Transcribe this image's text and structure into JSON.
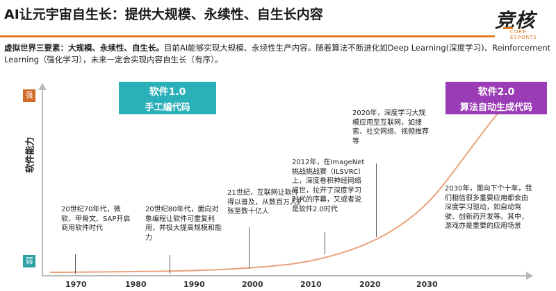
{
  "title": "AI让元宇宙自生长：提供大规模、永续性、自生长内容",
  "logo": {
    "main": "竞核",
    "sub": "CORE ESPORTS"
  },
  "description": {
    "lead": "虚拟世界三要素：大规模、永续性、自生长。",
    "body": "目前AI能够实现大规模、永续性生产内容。随着算法不断进化如Deep Learning(深度学习)、Reinforcement Learning（强化学习），未来一定会实现内容自生长（有序）。"
  },
  "y_axis": {
    "label": "软件能力",
    "top": "强",
    "bottom": "弱"
  },
  "x_ticks": [
    "1970",
    "1980",
    "1990",
    "2000",
    "2010",
    "2020",
    "2030"
  ],
  "software1": {
    "title": "软件1.0",
    "subtitle": "手工编代码"
  },
  "software2": {
    "title": "软件2.0",
    "subtitle": "算法自动生成代码"
  },
  "notes": [
    {
      "text": "20世纪70年代，微软、甲骨文、SAP开启商用软件时代"
    },
    {
      "text": "20世纪80年代，面向对象编程让软件可重复利用，并极大提高规模和能力"
    },
    {
      "text": "21世纪，互联网让软件得以普及，从数百万人扩张至数十亿人"
    },
    {
      "text": "2012年，在ImageNet挑战挑战赛（ILSVRC）上，深度卷积神经网络问世，拉开了深度学习时代的序幕，又或者说是软件2.0时代"
    },
    {
      "text": "2020年，深度学习大规模应用至互联网，如搜索、社交网络、视频推荐等"
    },
    {
      "text": "2030年，面向下个十年，我们相信很多重要应用都会由深度学习驱动，如自动驾驶、创新药开发等。其中，游戏亦是重要的应用场景"
    }
  ],
  "colors": {
    "accent": "#e07a1f",
    "software1": "#2ab0b8",
    "software2": "#9a3cb5",
    "curve": "#e8a27a",
    "strong": "#d16a26",
    "weak": "#2a9fa4"
  }
}
